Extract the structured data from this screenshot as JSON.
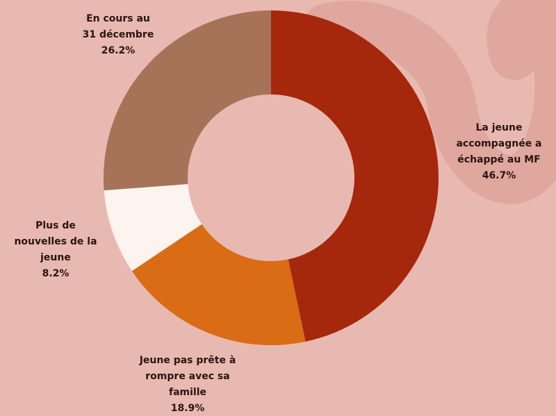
{
  "chart_data": {
    "type": "donut",
    "categories": [
      [
        "La jeune",
        "accompagnée a",
        "échappé au MF"
      ],
      [
        "Jeune pas prête à",
        "rompre avec sa",
        "famille"
      ],
      [
        "Plus de",
        "nouvelles de la",
        "jeune"
      ],
      [
        "En cours au",
        "31 décembre"
      ]
    ],
    "values": [
      46.7,
      18.9,
      8.2,
      26.2
    ],
    "value_labels": [
      "46.7%",
      "18.9%",
      "8.2%",
      "26.2%"
    ],
    "colors": [
      "#a5270c",
      "#d96c14",
      "#fdf4ef",
      "#a67358"
    ]
  }
}
